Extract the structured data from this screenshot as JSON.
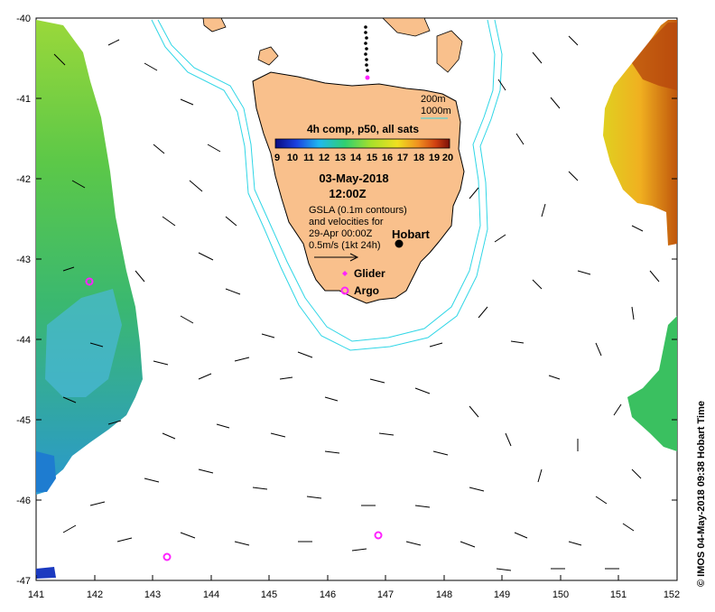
{
  "map": {
    "composite_label": "4h comp, p50, all sats",
    "colorbar_ticks": [
      "9",
      "10",
      "11",
      "12",
      "13",
      "14",
      "15",
      "16",
      "17",
      "18",
      "19",
      "20"
    ],
    "date": "03-May-2018",
    "time": "12:00Z",
    "gsla_line1": "GSLA (0.1m contours)",
    "gsla_line2": "and velocities for",
    "gsla_line3": "29-Apr 00:00Z",
    "velocity_scale": "0.5m/s (1kt 24h)",
    "hobart_label": "Hobart",
    "glider_label": "Glider",
    "argo_label": "Argo",
    "contour_200": "200m",
    "contour_1000": "1000m",
    "credit": "© IMOS 04-May-2018 09:38 Hobart Time",
    "x_ticks": [
      "141",
      "142",
      "143",
      "144",
      "145",
      "146",
      "147",
      "148",
      "149",
      "150",
      "151",
      "152"
    ],
    "y_ticks": [
      "-40",
      "-41",
      "-42",
      "-43",
      "-44",
      "-45",
      "-46",
      "-47"
    ],
    "colors": {
      "land": "#f9c08c",
      "isobath": "#2fd6e6",
      "marker": "#ff22ff",
      "sst_warm": "#d2690f",
      "sst_mid": "#3cc43c",
      "sst_cool": "#2aa8e0"
    }
  }
}
